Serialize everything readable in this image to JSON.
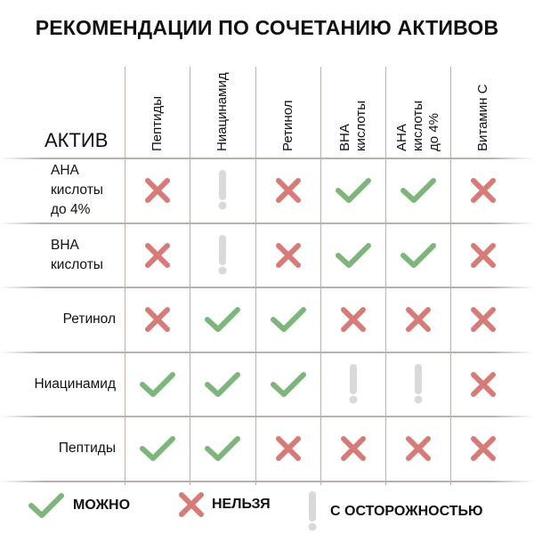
{
  "title": "РЕКОМЕНДАЦИИ ПО СОЧЕТАНИЮ АКТИВОВ",
  "corner_label": "АКТИВ",
  "colors": {
    "yes": "#7db57d",
    "no": "#d77b79",
    "caution": "#d9d9d9"
  },
  "columns": [
    "Пептиды",
    "Ниацинамид",
    "Ретинол",
    "BHA\nкислоты",
    "AHA\nкислоты\nдо 4%",
    "Витамин С"
  ],
  "rows": [
    {
      "label": "AHA\nкислоты\nдо 4%",
      "cells": [
        "no",
        "caution",
        "no",
        "yes",
        "yes",
        "no"
      ]
    },
    {
      "label": "BHA\nкислоты",
      "cells": [
        "no",
        "caution",
        "no",
        "yes",
        "yes",
        "no"
      ]
    },
    {
      "label": "Ретинол",
      "cells": [
        "no",
        "yes",
        "yes",
        "no",
        "no",
        "no"
      ]
    },
    {
      "label": "Ниацинамид",
      "cells": [
        "yes",
        "yes",
        "yes",
        "caution",
        "caution",
        "no"
      ]
    },
    {
      "label": "Пептиды",
      "cells": [
        "yes",
        "yes",
        "no",
        "no",
        "no",
        "no"
      ]
    }
  ],
  "legend": {
    "yes": "МОЖНО",
    "no": "НЕЛЬЗЯ",
    "caution": "С ОСТОРОЖНОСТЬЮ"
  }
}
